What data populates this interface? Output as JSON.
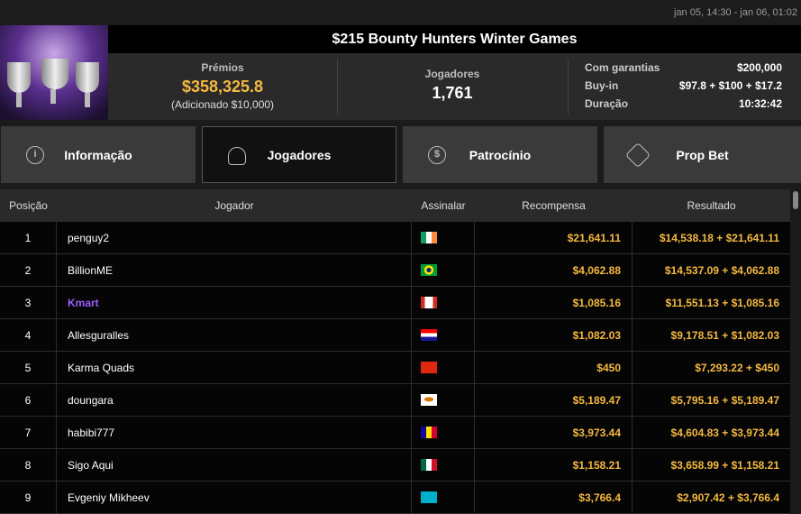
{
  "header": {
    "date_range": "jan 05, 14:30 - jan 06, 01:02",
    "title": "$215 Bounty Hunters Winter Games"
  },
  "stats": {
    "prizes_label": "Prémios",
    "prizes_value": "$358,325.8",
    "prizes_added": "(Adicionado $10,000)",
    "players_label": "Jogadores",
    "players_value": "1,761",
    "guaranteed_label": "Com garantias",
    "guaranteed_value": "$200,000",
    "buyin_label": "Buy-in",
    "buyin_value": "$97.8 + $100 + $17.2",
    "duration_label": "Duração",
    "duration_value": "10:32:42"
  },
  "tabs": [
    {
      "label": "Informação",
      "icon": "info-icon"
    },
    {
      "label": "Jogadores",
      "icon": "user-icon",
      "active": true
    },
    {
      "label": "Patrocínio",
      "icon": "dollar-coin-icon"
    },
    {
      "label": "Prop Bet",
      "icon": "prop-bet-icon"
    }
  ],
  "table": {
    "headers": [
      "Posição",
      "Jogador",
      "Assinalar",
      "Recompensa",
      "Resultado"
    ],
    "rows": [
      {
        "pos": "1",
        "player": "penguy2",
        "flag": "Ireland",
        "reward": "$21,641.11",
        "result": "$14,538.18 + $21,641.11"
      },
      {
        "pos": "2",
        "player": "BillionME",
        "flag": "Brazil",
        "reward": "$4,062.88",
        "result": "$14,537.09 + $4,062.88"
      },
      {
        "pos": "3",
        "player": "Kmart",
        "flag": "Canada",
        "reward": "$1,085.16",
        "result": "$11,551.13 + $1,085.16",
        "highlight": true
      },
      {
        "pos": "4",
        "player": "Allesguralles",
        "flag": "Croatia",
        "reward": "$1,082.03",
        "result": "$9,178.51 + $1,082.03"
      },
      {
        "pos": "5",
        "player": "Karma Quads",
        "flag": "China",
        "reward": "$450",
        "result": "$7,293.22 + $450"
      },
      {
        "pos": "6",
        "player": "doungara",
        "flag": "Cyprus",
        "reward": "$5,189.47",
        "result": "$5,795.16 + $5,189.47"
      },
      {
        "pos": "7",
        "player": "habibi777",
        "flag": "Andorra",
        "reward": "$3,973.44",
        "result": "$4,604.83 + $3,973.44"
      },
      {
        "pos": "8",
        "player": "Sigo Aqui",
        "flag": "Mexico",
        "reward": "$1,158.21",
        "result": "$3,658.99 + $1,158.21"
      },
      {
        "pos": "9",
        "player": "Evgeniy Mikheev",
        "flag": "Kazakhstan",
        "reward": "$3,766.4",
        "result": "$2,907.42 + $3,766.4"
      }
    ]
  },
  "colors": {
    "gold": "#f5b941",
    "highlight_player": "#9b5cff"
  }
}
